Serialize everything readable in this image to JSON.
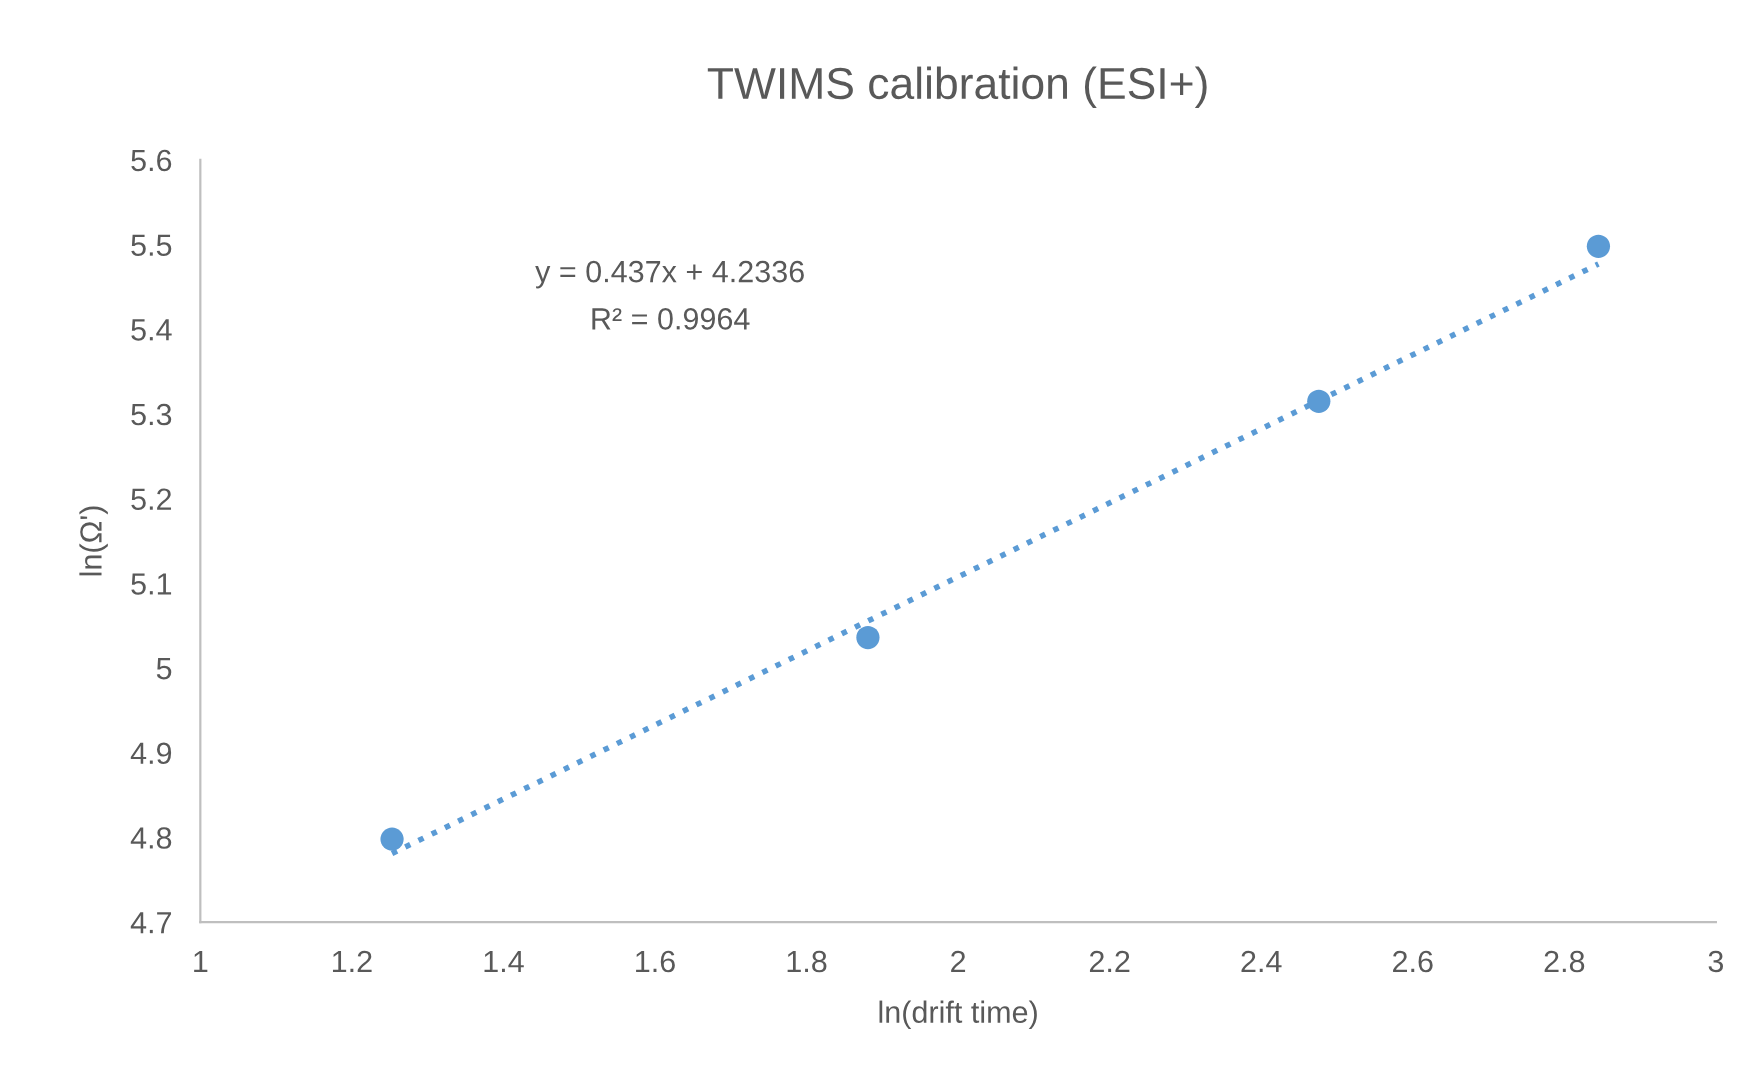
{
  "chart_data": {
    "type": "scatter",
    "title": "TWIMS calibration (ESI+)",
    "xlabel": "ln(drift time)",
    "ylabel": "ln(Ω')",
    "series": [
      {
        "color": "#5b9bd5",
        "x": [
          1.253,
          1.881,
          2.476,
          2.845
        ],
        "values": [
          4.798,
          5.036,
          5.315,
          5.498
        ],
        "marker": "circle"
      },
      {
        "type": "line",
        "color": "#5b9bd5",
        "x": [
          1.253,
          2.845
        ],
        "values": [
          4.781,
          5.477
        ],
        "line_style": "dotted",
        "marker": "none"
      }
    ],
    "annotations": [
      "y = 0.437x + 4.2336",
      "R² = 0.9964"
    ],
    "xlim": [
      1,
      3
    ],
    "xticks": [
      1,
      1.2,
      1.4,
      1.6,
      1.8,
      2,
      2.2,
      2.4,
      2.6,
      2.8,
      3
    ],
    "ylim": [
      4.7,
      5.6
    ],
    "yticks": [
      4.7,
      4.8,
      4.9,
      5,
      5.1,
      5.2,
      5.3,
      5.4,
      5.5,
      5.6
    ],
    "grid": false,
    "legend": false
  }
}
